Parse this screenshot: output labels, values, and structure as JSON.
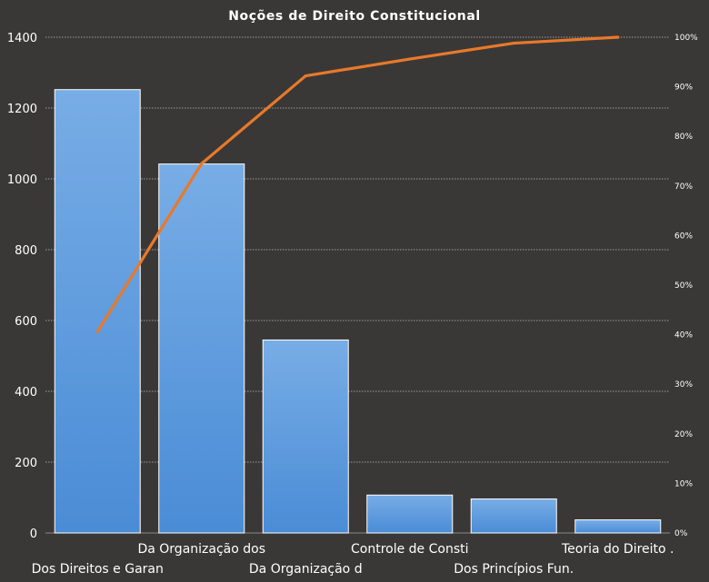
{
  "chart_data": {
    "type": "bar",
    "title": "Noções de Direito  Constitucional",
    "categories": [
      "Dos Direitos e Garan",
      "Da Organização dos",
      "Da Organização d",
      "Controle de Consti",
      "Dos Princípios Fun.",
      "Teoria do Direito ."
    ],
    "series": [
      {
        "type": "bar",
        "values": [
          1252,
          1042,
          545,
          107,
          96,
          37
        ]
      },
      {
        "type": "line",
        "axis": "secondary",
        "values": [
          40.6,
          74.5,
          92.2,
          95.6,
          98.8,
          100
        ]
      }
    ],
    "ylim": [
      0,
      1400
    ],
    "yticks": [
      0,
      200,
      400,
      600,
      800,
      1000,
      1200,
      1400
    ],
    "y2lim": [
      0,
      100
    ],
    "y2ticks": [
      "0%",
      "10%",
      "20%",
      "30%",
      "40%",
      "50%",
      "60%",
      "70%",
      "80%",
      "90%",
      "100%"
    ],
    "grid": true,
    "legend": "none",
    "colors": {
      "bar": "#4a8cd6",
      "bar_light": "#78ade6",
      "line": "#e8792b",
      "background": "#3a3836"
    }
  }
}
